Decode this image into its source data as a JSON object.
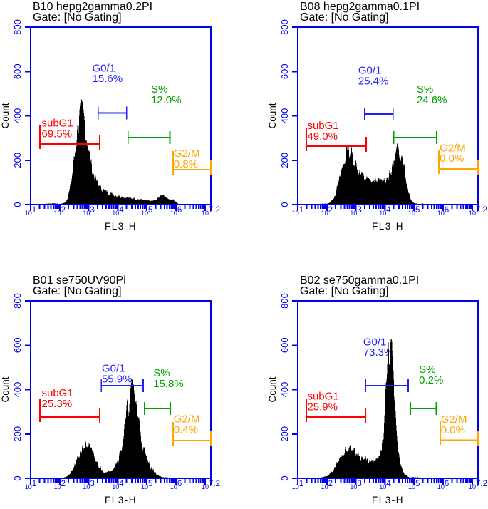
{
  "colors": {
    "axis": "#0000ee",
    "red": "#ff0000",
    "blue": "#2020ff",
    "green": "#00a000",
    "orange": "#ffa500",
    "histogram": "#000000",
    "title_text": "#000000"
  },
  "axes": {
    "xlabel": "FL3-H",
    "ylabel": "Count",
    "x_scale": "log10",
    "xlim_log10": [
      1,
      7.2
    ],
    "ylim": [
      0,
      800
    ],
    "x_tick_base": "10",
    "x_tick_exponents": [
      "1",
      "2",
      "3",
      "4",
      "5",
      "6",
      "7.2"
    ],
    "y_ticks": [
      0,
      200,
      400,
      600,
      800
    ]
  },
  "chart_data": [
    {
      "id": "B10",
      "type": "histogram",
      "title": "B10 hepg2gamma0.2PI",
      "gate_status": "Gate: [No Gating]",
      "gates": [
        {
          "name": "subG1",
          "pct": "69.5%",
          "color": "red",
          "from_log10": 1.32,
          "to_log10": 3.37,
          "bracket_counts": 273,
          "label_log10": 1.38,
          "label_counts": 352,
          "tall_left": true
        },
        {
          "name": "G0/1",
          "pct": "15.6%",
          "color": "blue",
          "from_log10": 3.32,
          "to_log10": 4.3,
          "bracket_counts": 413,
          "label_log10": 3.12,
          "label_counts": 600
        },
        {
          "name": "S%",
          "pct": "12.0%",
          "color": "green",
          "from_log10": 4.35,
          "to_log10": 5.79,
          "bracket_counts": 302,
          "label_log10": 5.14,
          "label_counts": 505
        },
        {
          "name": "G2/M",
          "pct": "0.8%",
          "color": "orange",
          "from_log10": 5.9,
          "to_log10": 7.2,
          "bracket_counts": 157,
          "label_log10": 5.92,
          "label_counts": 215,
          "tall_left": true
        }
      ],
      "distribution_peaks": [
        {
          "center_log10": 2.73,
          "sigma_log10": 0.2,
          "height_counts": 345
        },
        {
          "center_log10": 3.05,
          "sigma_log10": 0.28,
          "height_counts": 80
        },
        {
          "center_log10": 3.55,
          "sigma_log10": 0.35,
          "height_counts": 28
        },
        {
          "center_log10": 4.3,
          "sigma_log10": 0.7,
          "height_counts": 26
        },
        {
          "center_log10": 5.55,
          "sigma_log10": 0.16,
          "height_counts": 32
        },
        {
          "center_log10": 5.9,
          "sigma_log10": 0.1,
          "height_counts": 14
        }
      ],
      "signal_range_log10": [
        1.5,
        6.05
      ],
      "noise_seed": 7
    },
    {
      "id": "B08",
      "type": "histogram",
      "title": "B08 hepg2gamma0.1PI",
      "gate_status": "Gate: [No Gating]",
      "gates": [
        {
          "name": "subG1",
          "pct": "49.0%",
          "color": "red",
          "from_log10": 1.3,
          "to_log10": 3.35,
          "bracket_counts": 263,
          "label_log10": 1.33,
          "label_counts": 340,
          "tall_left": true
        },
        {
          "name": "G0/1",
          "pct": "25.4%",
          "color": "blue",
          "from_log10": 3.3,
          "to_log10": 4.28,
          "bracket_counts": 408,
          "label_log10": 3.08,
          "label_counts": 590
        },
        {
          "name": "S%",
          "pct": "24.6%",
          "color": "green",
          "from_log10": 4.3,
          "to_log10": 5.78,
          "bracket_counts": 302,
          "label_log10": 5.09,
          "label_counts": 505
        },
        {
          "name": "G2/M",
          "pct": "0.0%",
          "color": "orange",
          "from_log10": 5.85,
          "to_log10": 7.2,
          "bracket_counts": 161,
          "label_log10": 5.88,
          "label_counts": 240,
          "tall_left": true
        }
      ],
      "distribution_peaks": [
        {
          "center_log10": 2.72,
          "sigma_log10": 0.24,
          "height_counts": 200
        },
        {
          "center_log10": 3.15,
          "sigma_log10": 0.3,
          "height_counts": 60
        },
        {
          "center_log10": 3.75,
          "sigma_log10": 0.45,
          "height_counts": 82
        },
        {
          "center_log10": 4.52,
          "sigma_log10": 0.17,
          "height_counts": 185
        },
        {
          "center_log10": 4.25,
          "sigma_log10": 0.25,
          "height_counts": 55
        }
      ],
      "signal_range_log10": [
        1.85,
        5.3
      ],
      "noise_seed": 13
    },
    {
      "id": "B01",
      "type": "histogram",
      "title": "B01 se750UV90Pi",
      "gate_status": "Gate: [No Gating]",
      "gates": [
        {
          "name": "subG1",
          "pct": "25.3%",
          "color": "red",
          "from_log10": 1.32,
          "to_log10": 3.37,
          "bracket_counts": 276,
          "label_log10": 1.38,
          "label_counts": 370,
          "tall_left": true
        },
        {
          "name": "G0/1",
          "pct": "55.9%",
          "color": "blue",
          "from_log10": 3.43,
          "to_log10": 4.87,
          "bracket_counts": 418,
          "label_log10": 3.45,
          "label_counts": 480
        },
        {
          "name": "S%",
          "pct": "15.8%",
          "color": "green",
          "from_log10": 4.92,
          "to_log10": 5.8,
          "bracket_counts": 315,
          "label_log10": 5.22,
          "label_counts": 460
        },
        {
          "name": "G2/M",
          "pct": "0.4%",
          "color": "orange",
          "from_log10": 5.9,
          "to_log10": 7.2,
          "bracket_counts": 170,
          "label_log10": 5.92,
          "label_counts": 252,
          "tall_left": true
        }
      ],
      "distribution_peaks": [
        {
          "center_log10": 2.87,
          "sigma_log10": 0.26,
          "height_counts": 125
        },
        {
          "center_log10": 3.2,
          "sigma_log10": 0.3,
          "height_counts": 30
        },
        {
          "center_log10": 4.2,
          "sigma_log10": 0.3,
          "height_counts": 80
        },
        {
          "center_log10": 4.5,
          "sigma_log10": 0.2,
          "height_counts": 295
        },
        {
          "center_log10": 4.85,
          "sigma_log10": 0.28,
          "height_counts": 75
        }
      ],
      "signal_range_log10": [
        2.15,
        5.75
      ],
      "noise_seed": 21
    },
    {
      "id": "B02",
      "type": "histogram",
      "title": "B02 se750gamma0.1PI",
      "gate_status": "Gate: [No Gating]",
      "gates": [
        {
          "name": "subG1",
          "pct": "25.9%",
          "color": "red",
          "from_log10": 1.3,
          "to_log10": 3.33,
          "bracket_counts": 276,
          "label_log10": 1.33,
          "label_counts": 355,
          "tall_left": true
        },
        {
          "name": "G0/1",
          "pct": "73.3%",
          "color": "blue",
          "from_log10": 3.33,
          "to_log10": 4.8,
          "bracket_counts": 418,
          "label_log10": 3.25,
          "label_counts": 600
        },
        {
          "name": "S%",
          "pct": "0.2%",
          "color": "green",
          "from_log10": 4.87,
          "to_log10": 5.76,
          "bracket_counts": 315,
          "label_log10": 5.17,
          "label_counts": 475
        },
        {
          "name": "G2/M",
          "pct": "0.0%",
          "color": "orange",
          "from_log10": 5.9,
          "to_log10": 7.2,
          "bracket_counts": 173,
          "label_log10": 5.92,
          "label_counts": 250,
          "tall_left": true
        }
      ],
      "distribution_peaks": [
        {
          "center_log10": 2.68,
          "sigma_log10": 0.3,
          "height_counts": 90
        },
        {
          "center_log10": 3.3,
          "sigma_log10": 0.5,
          "height_counts": 70
        },
        {
          "center_log10": 3.95,
          "sigma_log10": 0.18,
          "height_counts": 60
        },
        {
          "center_log10": 4.17,
          "sigma_log10": 0.12,
          "height_counts": 470
        },
        {
          "center_log10": 4.35,
          "sigma_log10": 0.18,
          "height_counts": 90
        }
      ],
      "signal_range_log10": [
        1.8,
        5.15
      ],
      "noise_seed": 29
    }
  ]
}
